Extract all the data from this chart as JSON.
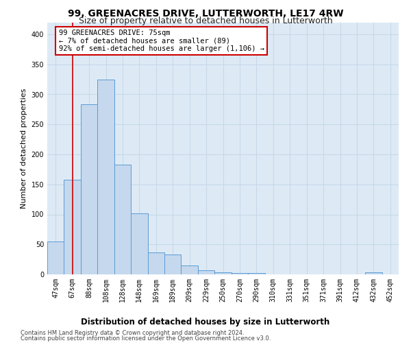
{
  "title": "99, GREENACRES DRIVE, LUTTERWORTH, LE17 4RW",
  "subtitle": "Size of property relative to detached houses in Lutterworth",
  "xlabel": "Distribution of detached houses by size in Lutterworth",
  "ylabel": "Number of detached properties",
  "bar_labels": [
    "47sqm",
    "67sqm",
    "88sqm",
    "108sqm",
    "128sqm",
    "148sqm",
    "169sqm",
    "189sqm",
    "209sqm",
    "229sqm",
    "250sqm",
    "270sqm",
    "290sqm",
    "310sqm",
    "331sqm",
    "351sqm",
    "371sqm",
    "391sqm",
    "412sqm",
    "432sqm",
    "452sqm"
  ],
  "bar_values": [
    55,
    158,
    283,
    325,
    183,
    102,
    37,
    33,
    15,
    7,
    4,
    2,
    2,
    0,
    0,
    0,
    0,
    0,
    0,
    3,
    0
  ],
  "bar_color": "#c5d8ed",
  "bar_edge_color": "#5b9bd5",
  "grid_color": "#c8d8e8",
  "background_color": "#ddeaf6",
  "red_line_x": 1.0,
  "annotation_text": "99 GREENACRES DRIVE: 75sqm\n← 7% of detached houses are smaller (89)\n92% of semi-detached houses are larger (1,106) →",
  "annotation_box_color": "#ffffff",
  "annotation_border_color": "#cc0000",
  "ylim": [
    0,
    420
  ],
  "yticks": [
    0,
    50,
    100,
    150,
    200,
    250,
    300,
    350,
    400
  ],
  "footer_line1": "Contains HM Land Registry data © Crown copyright and database right 2024.",
  "footer_line2": "Contains public sector information licensed under the Open Government Licence v3.0.",
  "title_fontsize": 10,
  "subtitle_fontsize": 9,
  "tick_fontsize": 7,
  "ylabel_fontsize": 8,
  "annotation_fontsize": 7.5,
  "xlabel_fontsize": 8.5,
  "footer_fontsize": 6
}
